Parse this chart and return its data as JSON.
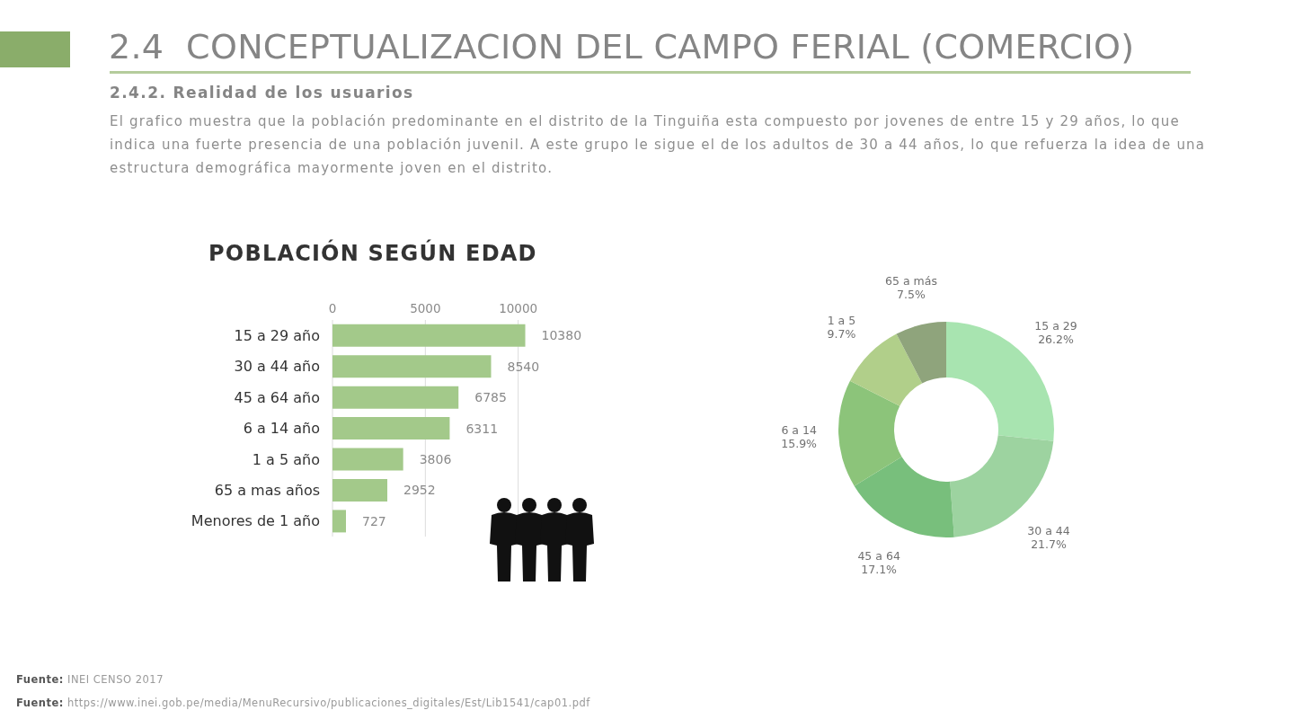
{
  "chart_data": [
    {
      "type": "bar",
      "orientation": "horizontal",
      "title": "POBLACIÓN SEGÚN EDAD",
      "categories": [
        "15 a 29 año",
        "30 a 44 año",
        "45 a 64 año",
        "6 a 14 año",
        "1 a 5 año",
        "65 a mas años",
        "Menores de 1 año"
      ],
      "values": [
        10380,
        8540,
        6785,
        6311,
        3806,
        2952,
        727
      ],
      "color": "#a3c98a",
      "xlim": [
        0,
        10500
      ],
      "xticks": [
        0,
        5000,
        10000
      ],
      "grid": "x",
      "data_labels": true,
      "annotations": [
        "2.4  CONCEPTUALIZACION DEL CAMPO FERIAL (COMERCIO)",
        "2.4.2. Realidad de los usuarios",
        "El grafico muestra que la población predominante en el distrito de la Tinguiña esta compuesto por jovenes de entre 15 y 29 años, lo que indica una fuerte presencia de una población juvenil. A este grupo le sigue el de los adultos de 30 a 44 años, lo que refuerza la idea de una estructura demográfica mayormente joven en el distrito.",
        "Fuente: INEI CENSO 2017",
        "Fuente: https://www.inei.gob.pe/media/MenuRecursivo/publicaciones_digitales/Est/Lib1541/cap01.pdf"
      ]
    },
    {
      "type": "donut",
      "categories": [
        "15 a 29",
        "30 a 44",
        "45 a 64",
        "6 a 14",
        "1 a 5",
        "65 a más"
      ],
      "values": [
        26.2,
        21.7,
        17.1,
        15.9,
        9.7,
        7.5
      ],
      "value_labels": [
        "26.2%",
        "21.7%",
        "17.1%",
        "15.9%",
        "9.7%",
        "7.5%"
      ],
      "colors": [
        "#a8e4b0",
        "#9dd3a0",
        "#78bf7c",
        "#8cc47a",
        "#b1cf8a",
        "#8fa47c"
      ]
    }
  ]
}
